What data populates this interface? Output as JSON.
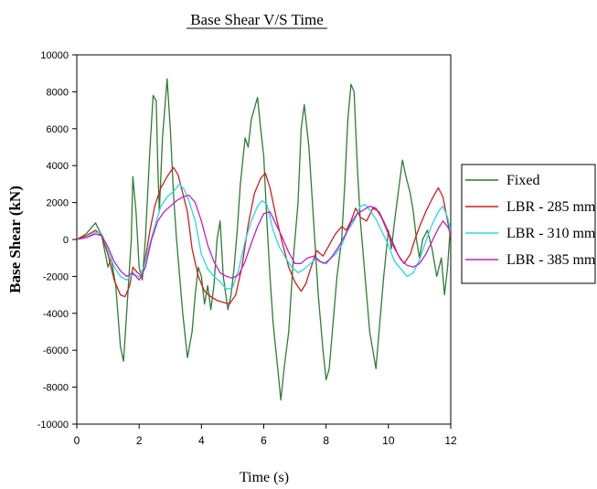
{
  "chart_data": {
    "type": "line",
    "title": "Base Shear V/S Time",
    "xlabel": "Time (s)",
    "ylabel": "Base Shear (kN)",
    "xlim": [
      0,
      12
    ],
    "ylim": [
      -10000,
      10000
    ],
    "xticks": [
      0,
      2,
      4,
      6,
      8,
      10,
      12
    ],
    "yticks": [
      -10000,
      -8000,
      -6000,
      -4000,
      -2000,
      0,
      2000,
      4000,
      6000,
      8000,
      10000
    ],
    "grid": false,
    "legend_position": "right",
    "series": [
      {
        "name": "Fixed",
        "color": "#2e7d32",
        "points": [
          [
            0,
            0
          ],
          [
            0.3,
            300
          ],
          [
            0.6,
            900
          ],
          [
            0.8,
            200
          ],
          [
            1.0,
            -1500
          ],
          [
            1.1,
            -1000
          ],
          [
            1.25,
            -2500
          ],
          [
            1.4,
            -5800
          ],
          [
            1.5,
            -6600
          ],
          [
            1.6,
            -4000
          ],
          [
            1.75,
            0
          ],
          [
            1.8,
            3400
          ],
          [
            1.9,
            1500
          ],
          [
            2.0,
            -1500
          ],
          [
            2.1,
            -2200
          ],
          [
            2.2,
            0
          ],
          [
            2.35,
            5000
          ],
          [
            2.45,
            7800
          ],
          [
            2.55,
            7500
          ],
          [
            2.6,
            4000
          ],
          [
            2.65,
            1500
          ],
          [
            2.75,
            5500
          ],
          [
            2.9,
            8700
          ],
          [
            3.0,
            6000
          ],
          [
            3.1,
            2500
          ],
          [
            3.2,
            0
          ],
          [
            3.3,
            -2000
          ],
          [
            3.4,
            -4000
          ],
          [
            3.55,
            -6400
          ],
          [
            3.7,
            -5000
          ],
          [
            3.8,
            -3000
          ],
          [
            3.9,
            -1500
          ],
          [
            4.0,
            -2000
          ],
          [
            4.1,
            -3500
          ],
          [
            4.2,
            -2500
          ],
          [
            4.3,
            -3800
          ],
          [
            4.4,
            -2500
          ],
          [
            4.5,
            0
          ],
          [
            4.6,
            1000
          ],
          [
            4.7,
            -2000
          ],
          [
            4.85,
            -3800
          ],
          [
            4.95,
            -3000
          ],
          [
            5.05,
            -1500
          ],
          [
            5.15,
            500
          ],
          [
            5.25,
            3000
          ],
          [
            5.4,
            5500
          ],
          [
            5.5,
            5000
          ],
          [
            5.6,
            6500
          ],
          [
            5.8,
            7700
          ],
          [
            5.9,
            6000
          ],
          [
            6.0,
            4500
          ],
          [
            6.1,
            1000
          ],
          [
            6.2,
            -2000
          ],
          [
            6.3,
            -4500
          ],
          [
            6.45,
            -7000
          ],
          [
            6.55,
            -8700
          ],
          [
            6.65,
            -7000
          ],
          [
            6.8,
            -5000
          ],
          [
            6.95,
            -1000
          ],
          [
            7.1,
            2000
          ],
          [
            7.2,
            6000
          ],
          [
            7.3,
            7300
          ],
          [
            7.45,
            5000
          ],
          [
            7.6,
            1000
          ],
          [
            7.75,
            -3000
          ],
          [
            7.9,
            -6000
          ],
          [
            8.0,
            -7600
          ],
          [
            8.1,
            -7000
          ],
          [
            8.2,
            -5000
          ],
          [
            8.35,
            -2000
          ],
          [
            8.5,
            0
          ],
          [
            8.6,
            3000
          ],
          [
            8.7,
            6500
          ],
          [
            8.8,
            8400
          ],
          [
            8.9,
            8000
          ],
          [
            9.0,
            4000
          ],
          [
            9.1,
            1000
          ],
          [
            9.25,
            -2000
          ],
          [
            9.4,
            -5000
          ],
          [
            9.5,
            -6000
          ],
          [
            9.6,
            -7000
          ],
          [
            9.7,
            -5000
          ],
          [
            9.85,
            -2000
          ],
          [
            10.0,
            500
          ],
          [
            10.1,
            -500
          ],
          [
            10.2,
            1000
          ],
          [
            10.35,
            3000
          ],
          [
            10.45,
            4300
          ],
          [
            10.55,
            3500
          ],
          [
            10.7,
            2500
          ],
          [
            10.8,
            1500
          ],
          [
            10.9,
            0
          ],
          [
            11.0,
            -1000
          ],
          [
            11.1,
            0
          ],
          [
            11.25,
            500
          ],
          [
            11.4,
            -500
          ],
          [
            11.55,
            -2000
          ],
          [
            11.7,
            -1000
          ],
          [
            11.8,
            -3000
          ],
          [
            11.9,
            -1500
          ],
          [
            12.0,
            1000
          ]
        ]
      },
      {
        "name": "LBR - 285 mm",
        "color": "#cc1f1f",
        "points": [
          [
            0,
            0
          ],
          [
            0.3,
            200
          ],
          [
            0.6,
            500
          ],
          [
            0.8,
            200
          ],
          [
            1.0,
            -800
          ],
          [
            1.2,
            -2200
          ],
          [
            1.4,
            -3000
          ],
          [
            1.55,
            -3100
          ],
          [
            1.7,
            -2500
          ],
          [
            1.8,
            -1500
          ],
          [
            1.95,
            -1800
          ],
          [
            2.1,
            -2000
          ],
          [
            2.2,
            -1000
          ],
          [
            2.35,
            500
          ],
          [
            2.5,
            1800
          ],
          [
            2.7,
            2800
          ],
          [
            2.9,
            3400
          ],
          [
            3.1,
            3900
          ],
          [
            3.25,
            3500
          ],
          [
            3.4,
            2500
          ],
          [
            3.55,
            1500
          ],
          [
            3.7,
            -500
          ],
          [
            3.9,
            -2000
          ],
          [
            4.1,
            -2800
          ],
          [
            4.3,
            -3100
          ],
          [
            4.5,
            -3300
          ],
          [
            4.7,
            -3400
          ],
          [
            4.9,
            -3500
          ],
          [
            5.1,
            -3000
          ],
          [
            5.3,
            -1500
          ],
          [
            5.5,
            800
          ],
          [
            5.7,
            2500
          ],
          [
            5.9,
            3300
          ],
          [
            6.05,
            3600
          ],
          [
            6.2,
            2800
          ],
          [
            6.4,
            1200
          ],
          [
            6.6,
            -200
          ],
          [
            6.8,
            -1500
          ],
          [
            7.0,
            -2300
          ],
          [
            7.2,
            -2800
          ],
          [
            7.35,
            -2400
          ],
          [
            7.5,
            -1600
          ],
          [
            7.7,
            -600
          ],
          [
            7.9,
            -900
          ],
          [
            8.1,
            -300
          ],
          [
            8.3,
            300
          ],
          [
            8.5,
            700
          ],
          [
            8.65,
            500
          ],
          [
            8.8,
            1000
          ],
          [
            8.95,
            1700
          ],
          [
            9.1,
            1200
          ],
          [
            9.3,
            1000
          ],
          [
            9.5,
            1700
          ],
          [
            9.7,
            1500
          ],
          [
            9.9,
            800
          ],
          [
            10.1,
            0
          ],
          [
            10.3,
            -800
          ],
          [
            10.5,
            -1300
          ],
          [
            10.7,
            -800
          ],
          [
            10.85,
            0
          ],
          [
            11.0,
            700
          ],
          [
            11.2,
            1500
          ],
          [
            11.4,
            2200
          ],
          [
            11.6,
            2800
          ],
          [
            11.75,
            2300
          ],
          [
            11.9,
            1000
          ],
          [
            12.0,
            100
          ]
        ]
      },
      {
        "name": "LBR - 310 mm",
        "color": "#27d8e8",
        "points": [
          [
            0,
            0
          ],
          [
            0.3,
            100
          ],
          [
            0.6,
            400
          ],
          [
            0.8,
            300
          ],
          [
            1.0,
            -600
          ],
          [
            1.2,
            -1500
          ],
          [
            1.4,
            -2000
          ],
          [
            1.6,
            -2200
          ],
          [
            1.8,
            -1900
          ],
          [
            2.0,
            -2000
          ],
          [
            2.15,
            -1500
          ],
          [
            2.3,
            -500
          ],
          [
            2.5,
            700
          ],
          [
            2.7,
            1800
          ],
          [
            2.9,
            2300
          ],
          [
            3.1,
            2600
          ],
          [
            3.3,
            3000
          ],
          [
            3.45,
            2700
          ],
          [
            3.6,
            2100
          ],
          [
            3.8,
            1000
          ],
          [
            4.0,
            -800
          ],
          [
            4.2,
            -1600
          ],
          [
            4.4,
            -2000
          ],
          [
            4.6,
            -2300
          ],
          [
            4.8,
            -2700
          ],
          [
            5.0,
            -2600
          ],
          [
            5.2,
            -1600
          ],
          [
            5.4,
            -100
          ],
          [
            5.6,
            1000
          ],
          [
            5.8,
            1800
          ],
          [
            5.95,
            2100
          ],
          [
            6.1,
            1900
          ],
          [
            6.3,
            500
          ],
          [
            6.5,
            -400
          ],
          [
            6.7,
            -1000
          ],
          [
            6.9,
            -1500
          ],
          [
            7.1,
            -1800
          ],
          [
            7.3,
            -1600
          ],
          [
            7.5,
            -1300
          ],
          [
            7.7,
            -1000
          ],
          [
            7.9,
            -1300
          ],
          [
            8.1,
            -1100
          ],
          [
            8.3,
            -800
          ],
          [
            8.5,
            -300
          ],
          [
            8.7,
            500
          ],
          [
            8.9,
            1000
          ],
          [
            9.1,
            1800
          ],
          [
            9.25,
            1900
          ],
          [
            9.4,
            1600
          ],
          [
            9.6,
            1100
          ],
          [
            9.8,
            400
          ],
          [
            10.0,
            -300
          ],
          [
            10.2,
            -1200
          ],
          [
            10.4,
            -1600
          ],
          [
            10.6,
            -2000
          ],
          [
            10.8,
            -1800
          ],
          [
            11.0,
            -1100
          ],
          [
            11.2,
            -100
          ],
          [
            11.4,
            800
          ],
          [
            11.6,
            1500
          ],
          [
            11.75,
            1800
          ],
          [
            11.9,
            1200
          ],
          [
            12.0,
            400
          ]
        ]
      },
      {
        "name": "LBR - 385 mm",
        "color": "#c020c0",
        "points": [
          [
            0,
            0
          ],
          [
            0.3,
            100
          ],
          [
            0.6,
            300
          ],
          [
            0.8,
            200
          ],
          [
            1.0,
            -400
          ],
          [
            1.2,
            -1200
          ],
          [
            1.4,
            -1700
          ],
          [
            1.6,
            -2000
          ],
          [
            1.8,
            -1800
          ],
          [
            2.0,
            -2200
          ],
          [
            2.2,
            -1500
          ],
          [
            2.4,
            0
          ],
          [
            2.6,
            1000
          ],
          [
            2.8,
            1500
          ],
          [
            3.0,
            1800
          ],
          [
            3.2,
            2100
          ],
          [
            3.4,
            2300
          ],
          [
            3.6,
            2400
          ],
          [
            3.8,
            2000
          ],
          [
            4.0,
            1000
          ],
          [
            4.2,
            -300
          ],
          [
            4.4,
            -1200
          ],
          [
            4.6,
            -1800
          ],
          [
            4.8,
            -2000
          ],
          [
            5.0,
            -2100
          ],
          [
            5.2,
            -1900
          ],
          [
            5.4,
            -1200
          ],
          [
            5.6,
            -200
          ],
          [
            5.8,
            700
          ],
          [
            6.0,
            1400
          ],
          [
            6.2,
            1500
          ],
          [
            6.4,
            800
          ],
          [
            6.6,
            100
          ],
          [
            6.8,
            -700
          ],
          [
            7.0,
            -1300
          ],
          [
            7.2,
            -1300
          ],
          [
            7.4,
            -1000
          ],
          [
            7.6,
            -900
          ],
          [
            7.8,
            -1200
          ],
          [
            8.0,
            -1300
          ],
          [
            8.2,
            -900
          ],
          [
            8.4,
            -400
          ],
          [
            8.6,
            200
          ],
          [
            8.8,
            900
          ],
          [
            9.0,
            1400
          ],
          [
            9.2,
            1600
          ],
          [
            9.4,
            1800
          ],
          [
            9.6,
            1700
          ],
          [
            9.8,
            1100
          ],
          [
            10.0,
            300
          ],
          [
            10.2,
            -500
          ],
          [
            10.4,
            -1100
          ],
          [
            10.6,
            -1400
          ],
          [
            10.8,
            -1500
          ],
          [
            11.0,
            -1300
          ],
          [
            11.2,
            -800
          ],
          [
            11.4,
            -100
          ],
          [
            11.6,
            600
          ],
          [
            11.75,
            1000
          ],
          [
            11.9,
            700
          ],
          [
            12.0,
            300
          ]
        ]
      }
    ]
  }
}
